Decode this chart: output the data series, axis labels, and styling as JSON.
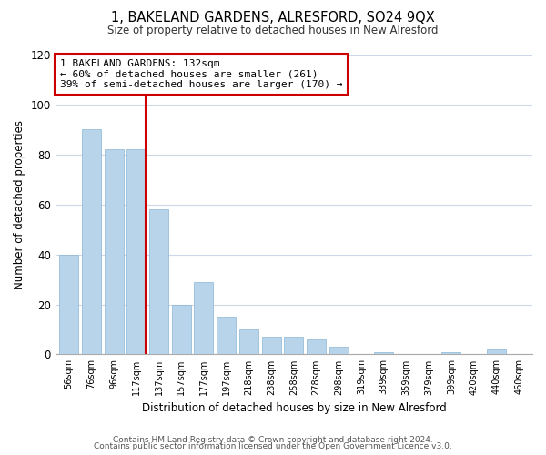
{
  "title": "1, BAKELAND GARDENS, ALRESFORD, SO24 9QX",
  "subtitle": "Size of property relative to detached houses in New Alresford",
  "xlabel": "Distribution of detached houses by size in New Alresford",
  "ylabel": "Number of detached properties",
  "bar_labels": [
    "56sqm",
    "76sqm",
    "96sqm",
    "117sqm",
    "137sqm",
    "157sqm",
    "177sqm",
    "197sqm",
    "218sqm",
    "238sqm",
    "258sqm",
    "278sqm",
    "298sqm",
    "319sqm",
    "339sqm",
    "359sqm",
    "379sqm",
    "399sqm",
    "420sqm",
    "440sqm",
    "460sqm"
  ],
  "bar_values": [
    40,
    90,
    82,
    82,
    58,
    20,
    29,
    15,
    10,
    7,
    7,
    6,
    3,
    0,
    1,
    0,
    0,
    1,
    0,
    2,
    0
  ],
  "bar_color": "#b8d4ea",
  "marker_color": "#cc0000",
  "marker_line_index": 4,
  "annotation_text": "1 BAKELAND GARDENS: 132sqm\n← 60% of detached houses are smaller (261)\n39% of semi-detached houses are larger (170) →",
  "annotation_box_color": "#ffffff",
  "annotation_box_edge_color": "#cc0000",
  "ylim": [
    0,
    120
  ],
  "yticks": [
    0,
    20,
    40,
    60,
    80,
    100,
    120
  ],
  "footer_line1": "Contains HM Land Registry data © Crown copyright and database right 2024.",
  "footer_line2": "Contains public sector information licensed under the Open Government Licence v3.0.",
  "background_color": "#ffffff",
  "grid_color": "#ccd8e8"
}
